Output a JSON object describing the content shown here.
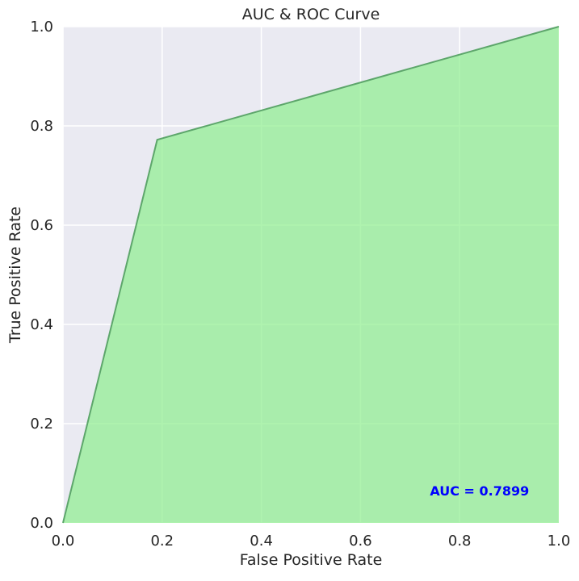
{
  "chart_data": {
    "type": "area",
    "title": "AUC & ROC Curve",
    "xlabel": "False Positive Rate",
    "ylabel": "True Positive Rate",
    "xlim": [
      0,
      1
    ],
    "ylim": [
      0,
      1
    ],
    "xticks": [
      "0.0",
      "0.2",
      "0.4",
      "0.6",
      "0.8",
      "1.0"
    ],
    "yticks": [
      "0.0",
      "0.2",
      "0.4",
      "0.6",
      "0.8",
      "1.0"
    ],
    "grid": true,
    "series": [
      {
        "x": [
          0.0,
          0.19,
          1.0
        ],
        "y": [
          0.0,
          0.772,
          1.0
        ]
      }
    ],
    "annotation": {
      "text": "AUC = 0.7899",
      "x": 0.74,
      "y": 0.055
    },
    "colors": {
      "background": "#eaeaf2",
      "grid": "#ffffff",
      "fill": "#90ee90",
      "line": "#5da66b",
      "annotation": "#0000ff"
    }
  }
}
